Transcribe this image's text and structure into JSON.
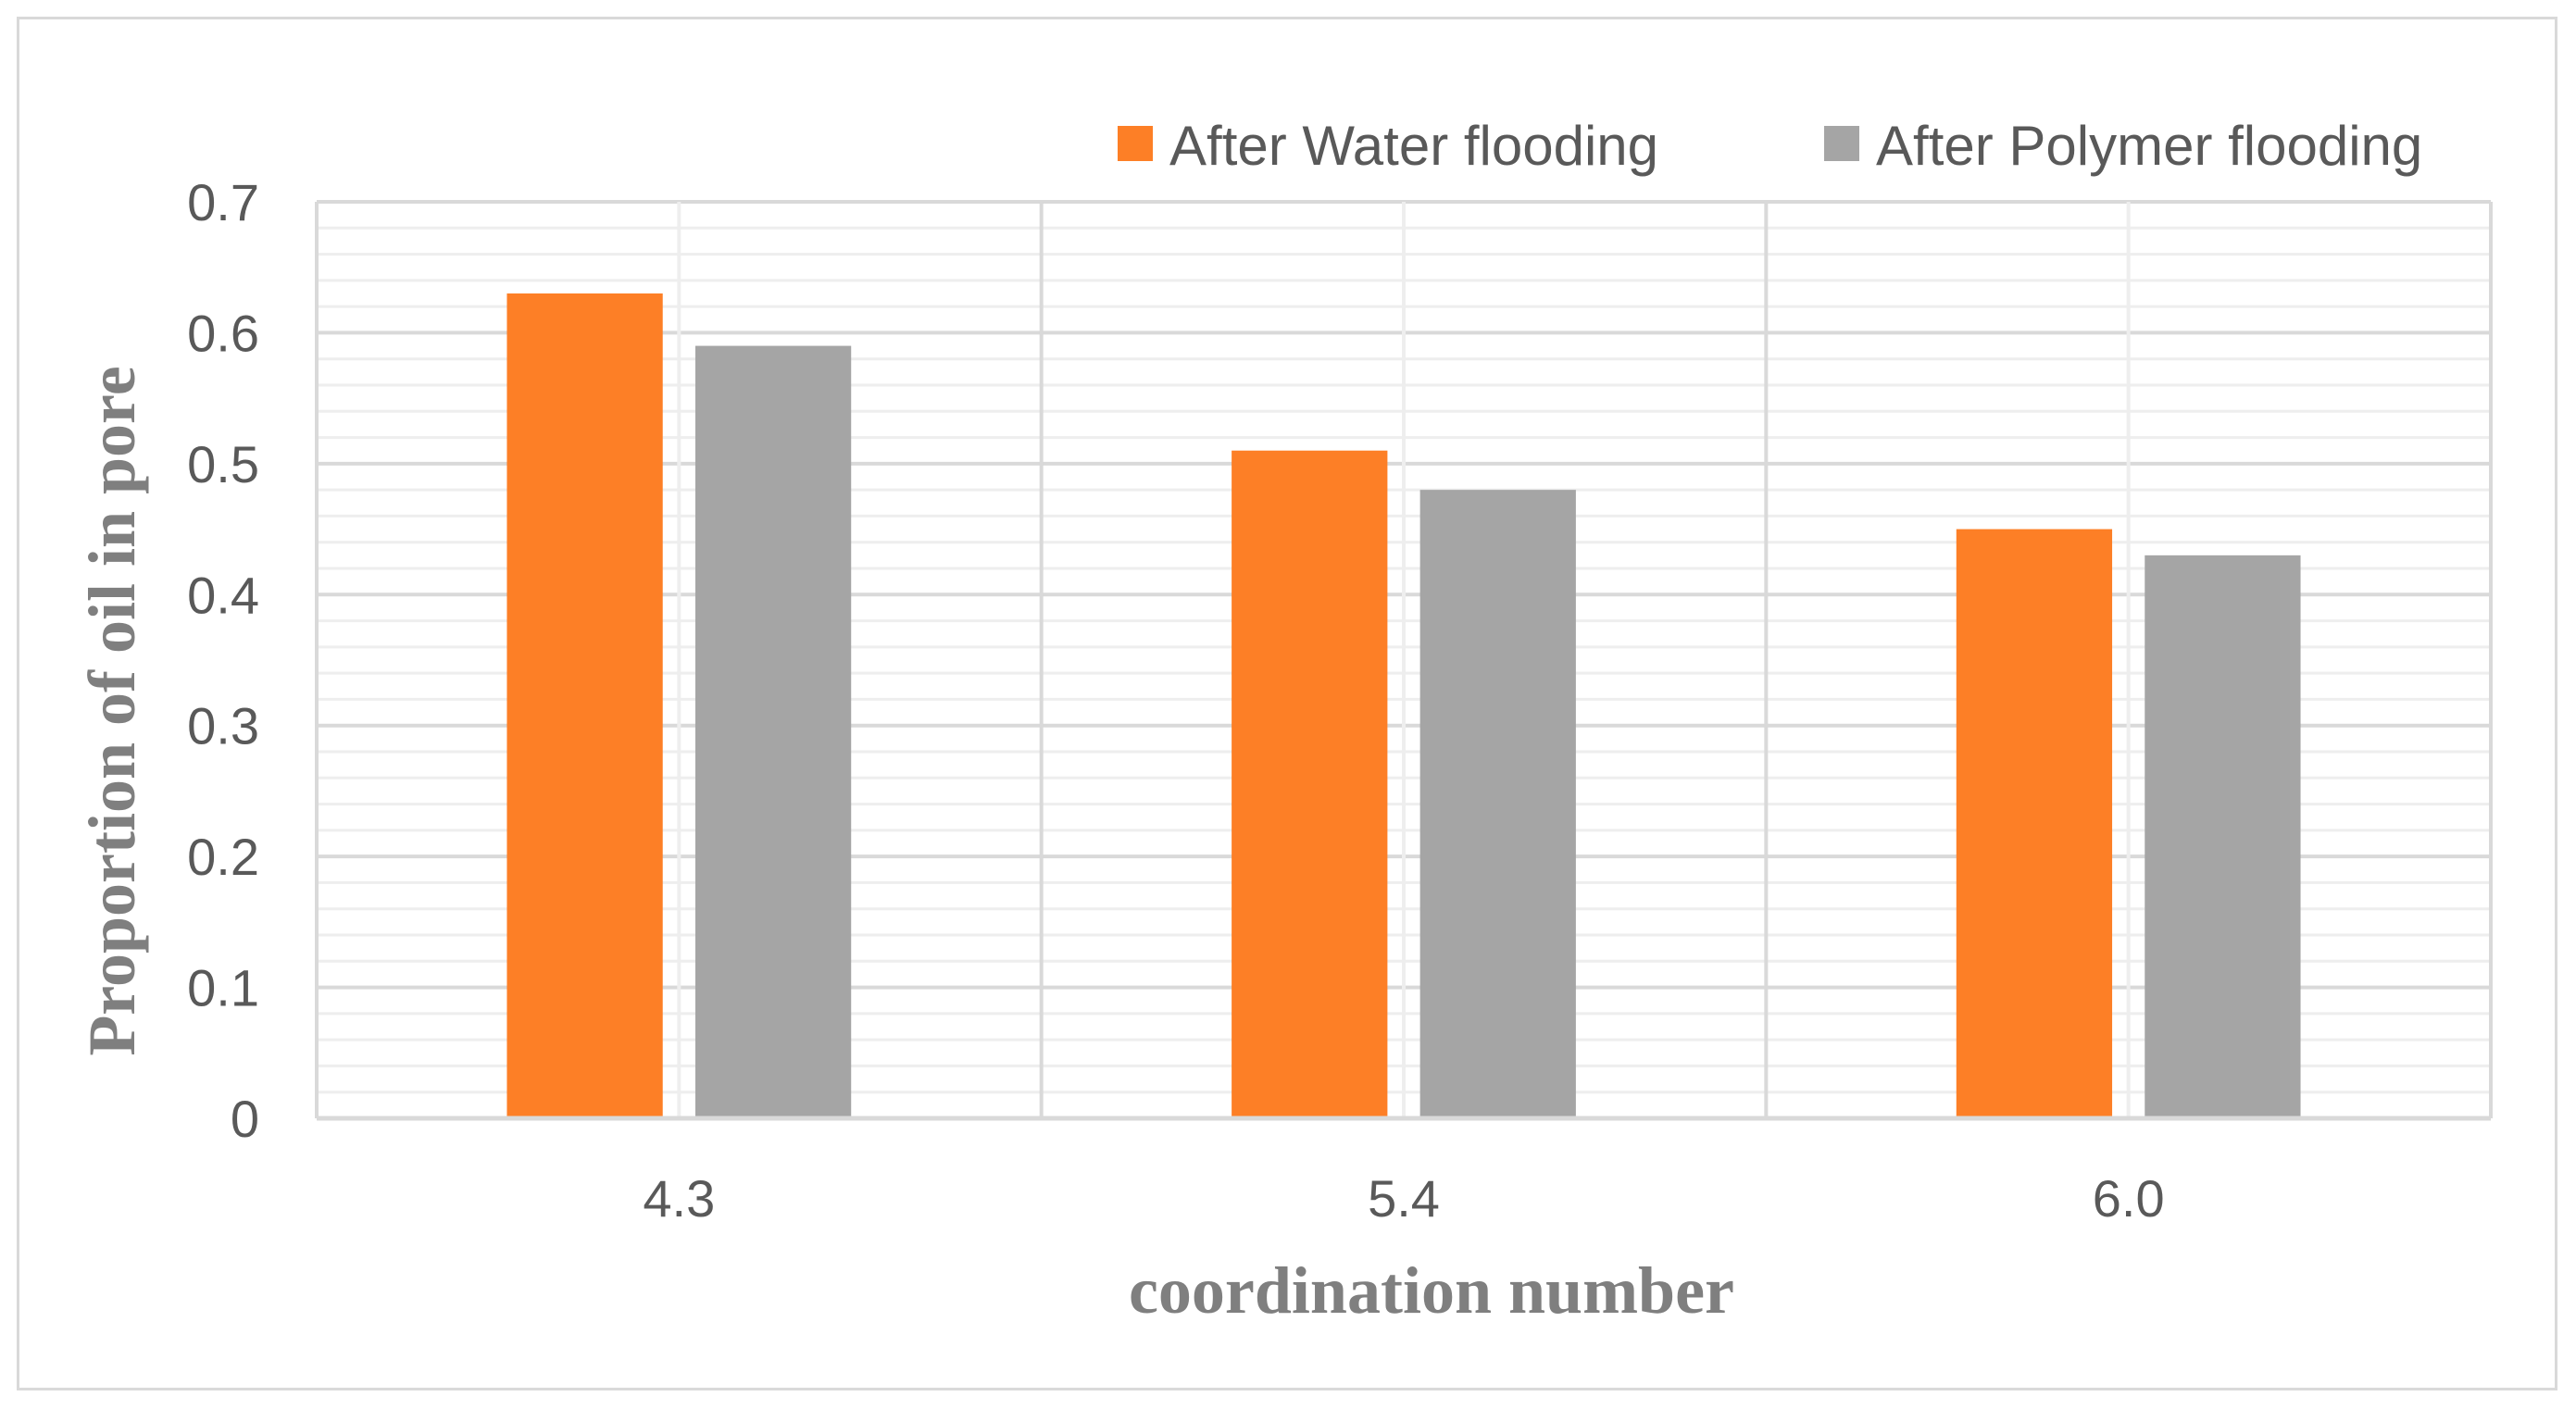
{
  "chart_data": {
    "type": "bar",
    "categories": [
      "4.3",
      "5.4",
      "6.0"
    ],
    "series": [
      {
        "name": "After Water flooding",
        "values": [
          0.63,
          0.51,
          0.45
        ],
        "color": "#fd7f26"
      },
      {
        "name": "After Polymer flooding",
        "values": [
          0.59,
          0.48,
          0.43
        ],
        "color": "#a5a5a5"
      }
    ],
    "xlabel": "coordination number",
    "ylabel": "Proportion of oil in pore",
    "ylim": [
      0,
      0.7
    ],
    "yticks": [
      "0",
      "0.1",
      "0.2",
      "0.3",
      "0.4",
      "0.5",
      "0.6",
      "0.7"
    ],
    "grid": true,
    "legend_position": "top-right",
    "colors": {
      "major_grid": "#d9d9d9",
      "minor_grid": "#eeeeee",
      "axis": "#d9d9d9",
      "text": "#595959",
      "axis_title": "#7f7f7f",
      "border": "#d9d9d9"
    }
  }
}
